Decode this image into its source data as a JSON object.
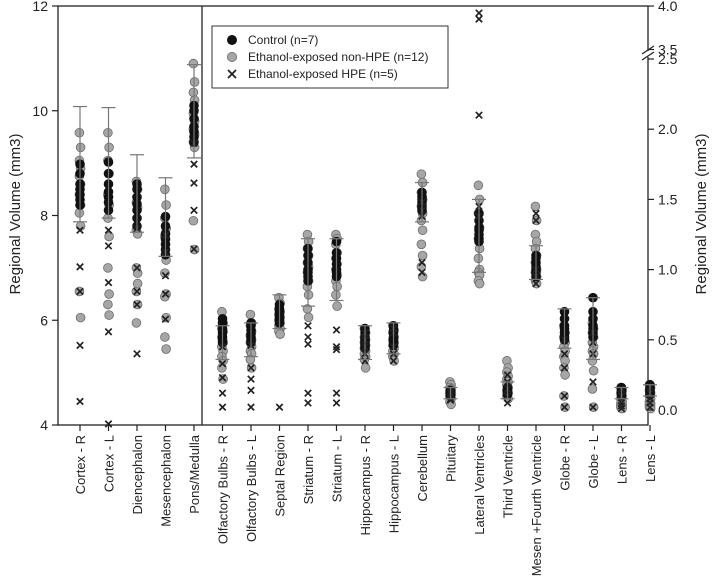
{
  "chart_data": {
    "type": "scatter",
    "title": "",
    "ylabel_left": "Regional Volume (mm3)",
    "ylabel_right": "Regional Volume (mm3)",
    "left_axis": {
      "ylim": [
        4,
        12
      ],
      "ticks": [
        "4",
        "6",
        "8",
        "10",
        "12"
      ]
    },
    "right_axis": {
      "ylim": [
        0,
        4.0
      ],
      "ticks_lower": [
        "0.0",
        "0.5",
        "1.0",
        "1.5",
        "2.0",
        "2.5"
      ],
      "ticks_upper": [
        "3.5",
        "4.0"
      ],
      "axis_break": "between 2.5 and 3.5"
    },
    "legend": {
      "placement": "top-center",
      "entries": [
        {
          "label": "Control (n=7)",
          "marker": "filled-black-circle"
        },
        {
          "label": "Ethanol-exposed non-HPE (n=12)",
          "marker": "filled-gray-circle"
        },
        {
          "label": "Ethanol-exposed HPE (n=5)",
          "marker": "x"
        }
      ]
    },
    "colors": {
      "control": "#111111",
      "non_hpe": "#a6a6a6",
      "hpe": "#222222",
      "errorbar": "#777777"
    },
    "categories": [
      {
        "label": "Cortex - R",
        "axis": "left",
        "control": [
          8.98,
          8.8,
          8.6,
          8.5,
          8.4,
          8.3,
          8.2
        ],
        "non_hpe": [
          9.58,
          9.3,
          9.05,
          8.9,
          8.75,
          8.6,
          8.4,
          8.2,
          8.05,
          7.8,
          6.55,
          6.05
        ],
        "hpe": [
          7.72,
          7.02,
          6.55,
          5.52,
          4.45
        ],
        "mean": 8.98,
        "err_upper": 10.08,
        "err_lower": 7.88
      },
      {
        "label": "Cortex - L",
        "axis": "left",
        "control": [
          9.02,
          8.8,
          8.6,
          8.45,
          8.35,
          8.25,
          8.1
        ],
        "non_hpe": [
          9.58,
          9.3,
          9.05,
          8.8,
          8.4,
          8.2,
          7.95,
          7.6,
          7.0,
          6.5,
          6.3,
          6.1
        ],
        "hpe": [
          7.72,
          7.42,
          6.72,
          5.78,
          4.02
        ],
        "mean": 9.02,
        "err_upper": 10.06,
        "err_lower": 7.95
      },
      {
        "label": "Diencephalon",
        "axis": "left",
        "control": [
          8.6,
          8.5,
          8.35,
          8.22,
          8.1,
          7.95,
          7.8
        ],
        "non_hpe": [
          8.65,
          8.5,
          8.25,
          8.15,
          7.72,
          7.65,
          7.0,
          6.9,
          6.55,
          6.3,
          5.95,
          6.7
        ],
        "hpe": [
          7.75,
          7.0,
          6.55,
          6.3,
          5.36
        ],
        "mean": 8.42,
        "err_upper": 9.16,
        "err_lower": 7.68
      },
      {
        "label": "Mesencephalon",
        "axis": "left",
        "control": [
          7.98,
          7.8,
          7.65,
          7.55,
          7.45,
          7.35,
          7.25
        ],
        "non_hpe": [
          8.5,
          8.2,
          7.95,
          7.75,
          7.6,
          7.15,
          6.9,
          6.5,
          6.45,
          6.05,
          5.68,
          5.45
        ],
        "hpe": [
          7.62,
          7.3,
          6.85,
          6.5,
          6.02
        ],
        "mean": 7.98,
        "err_upper": 8.72,
        "err_lower": 7.22
      },
      {
        "label": "Pons/Medulla",
        "axis": "left",
        "control": [
          10.1,
          10.0,
          9.85,
          9.7,
          9.6,
          9.5,
          9.4
        ],
        "non_hpe": [
          10.9,
          10.55,
          10.35,
          10.2,
          9.95,
          9.8,
          9.65,
          9.55,
          9.4,
          9.3,
          7.9,
          7.35
        ],
        "hpe": [
          9.38,
          8.98,
          8.62,
          8.1,
          7.36
        ],
        "mean": 9.98,
        "err_upper": 10.88,
        "err_lower": 9.1
      },
      {
        "label": "Olfactory Bulbs - R",
        "axis": "right",
        "control": [
          0.65,
          0.62,
          0.58,
          0.55,
          0.52,
          0.5,
          0.48
        ],
        "non_hpe": [
          0.7,
          0.62,
          0.58,
          0.56,
          0.52,
          0.48,
          0.45,
          0.42,
          0.38,
          0.35,
          0.3,
          0.22
        ],
        "hpe": [
          0.45,
          0.33,
          0.23,
          0.12,
          0.02
        ],
        "mean": 0.48,
        "err_upper": 0.6,
        "err_lower": 0.36
      },
      {
        "label": "Olfactory Bulbs - L",
        "axis": "right",
        "control": [
          0.62,
          0.6,
          0.57,
          0.54,
          0.52,
          0.5,
          0.48
        ],
        "non_hpe": [
          0.68,
          0.62,
          0.6,
          0.56,
          0.53,
          0.5,
          0.48,
          0.45,
          0.42,
          0.4,
          0.36,
          0.3
        ],
        "hpe": [
          0.46,
          0.3,
          0.22,
          0.14,
          0.02
        ],
        "mean": 0.5,
        "err_upper": 0.62,
        "err_lower": 0.38
      },
      {
        "label": "Septal Region",
        "axis": "right",
        "control": [
          0.75,
          0.72,
          0.7,
          0.68,
          0.66,
          0.64,
          0.62
        ],
        "non_hpe": [
          0.8,
          0.76,
          0.72,
          0.7,
          0.68,
          0.66,
          0.64,
          0.62,
          0.6,
          0.58,
          0.56,
          0.54
        ],
        "hpe": [
          0.02
        ],
        "mean": 0.7,
        "err_upper": 0.82,
        "err_lower": 0.58
      },
      {
        "label": "Striatum - R",
        "axis": "right",
        "control": [
          1.15,
          1.1,
          1.05,
          1.0,
          0.98,
          0.95,
          0.92
        ],
        "non_hpe": [
          1.25,
          1.2,
          1.15,
          1.1,
          1.05,
          1.02,
          0.98,
          0.92,
          0.88,
          0.82,
          0.72,
          0.66
        ],
        "hpe": [
          0.6,
          0.52,
          0.47,
          0.12,
          0.05
        ],
        "mean": 0.98,
        "err_upper": 1.22,
        "err_lower": 0.74
      },
      {
        "label": "Striatum - L",
        "axis": "right",
        "control": [
          1.2,
          1.12,
          1.08,
          1.04,
          1.0,
          0.98,
          0.95
        ],
        "non_hpe": [
          1.25,
          1.22,
          1.18,
          1.12,
          1.08,
          1.04,
          1.0,
          0.96,
          0.92,
          0.88,
          0.82,
          0.74
        ],
        "hpe": [
          0.57,
          0.45,
          0.43,
          0.12,
          0.05
        ],
        "mean": 1.0,
        "err_upper": 1.22,
        "err_lower": 0.78
      },
      {
        "label": "Hippocampus - R",
        "axis": "right",
        "control": [
          0.58,
          0.55,
          0.52,
          0.5,
          0.48,
          0.46,
          0.44
        ],
        "non_hpe": [
          0.58,
          0.55,
          0.52,
          0.5,
          0.48,
          0.46,
          0.44,
          0.42,
          0.4,
          0.38,
          0.36,
          0.3
        ],
        "hpe": [
          0.55,
          0.5,
          0.45,
          0.4,
          0.35
        ],
        "mean": 0.48,
        "err_upper": 0.6,
        "err_lower": 0.36
      },
      {
        "label": "Hippocampus - L",
        "axis": "right",
        "control": [
          0.6,
          0.57,
          0.55,
          0.52,
          0.5,
          0.48,
          0.46
        ],
        "non_hpe": [
          0.6,
          0.57,
          0.55,
          0.52,
          0.5,
          0.48,
          0.46,
          0.44,
          0.42,
          0.4,
          0.38,
          0.35
        ],
        "hpe": [
          0.58,
          0.55,
          0.45,
          0.4,
          0.35
        ],
        "mean": 0.52,
        "err_upper": 0.62,
        "err_lower": 0.4
      },
      {
        "label": "Cerebellum",
        "axis": "right",
        "control": [
          1.55,
          1.52,
          1.5,
          1.48,
          1.46,
          1.44,
          1.42
        ],
        "non_hpe": [
          1.68,
          1.62,
          1.55,
          1.5,
          1.45,
          1.4,
          1.35,
          1.28,
          1.18,
          1.1,
          1.02,
          0.95
        ],
        "hpe": [
          1.48,
          1.42,
          1.38,
          1.05,
          0.98
        ],
        "mean": 1.48,
        "err_upper": 1.62,
        "err_lower": 1.34
      },
      {
        "label": "Pituitary",
        "axis": "right",
        "control": [
          0.14,
          0.13,
          0.12,
          0.12,
          0.11,
          0.1,
          0.1
        ],
        "non_hpe": [
          0.2,
          0.18,
          0.16,
          0.15,
          0.14,
          0.13,
          0.12,
          0.11,
          0.1,
          0.08,
          0.06,
          0.04
        ],
        "hpe": [
          0.14,
          0.12,
          0.1,
          0.08,
          0.07
        ],
        "mean": 0.12,
        "err_upper": 0.16,
        "err_lower": 0.08
      },
      {
        "label": "Lateral Ventricles",
        "axis": "right",
        "control": [
          1.4,
          1.35,
          1.3,
          1.28,
          1.25,
          1.22,
          1.2
        ],
        "non_hpe": [
          1.6,
          1.5,
          1.4,
          1.3,
          1.22,
          1.15,
          1.08,
          1.0,
          0.98,
          0.96,
          0.92,
          0.9
        ],
        "hpe": [
          3.92,
          3.85,
          2.1,
          1.45,
          1.38
        ],
        "mean": 1.3,
        "err_upper": 1.5,
        "err_lower": 0.98
      },
      {
        "label": "Third Ventricle",
        "axis": "right",
        "control": [
          0.16,
          0.15,
          0.14,
          0.13,
          0.12,
          0.12,
          0.11
        ],
        "non_hpe": [
          0.35,
          0.3,
          0.27,
          0.24,
          0.22,
          0.2,
          0.18,
          0.16,
          0.14,
          0.12,
          0.1,
          0.08
        ],
        "hpe": [
          0.25,
          0.2,
          0.15,
          0.1,
          0.05
        ],
        "mean": 0.14,
        "err_upper": 0.2,
        "err_lower": 0.08
      },
      {
        "label": "Mesen +Fourth Ventricle",
        "axis": "right",
        "control": [
          1.1,
          1.08,
          1.05,
          1.02,
          1.0,
          0.98,
          0.95
        ],
        "non_hpe": [
          1.45,
          1.35,
          1.25,
          1.2,
          1.15,
          1.1,
          1.05,
          1.0,
          0.98,
          0.95,
          0.92,
          0.9
        ],
        "hpe": [
          1.4,
          1.35,
          1.0,
          0.95,
          0.9
        ],
        "mean": 1.05,
        "err_upper": 1.17,
        "err_lower": 0.93
      },
      {
        "label": "Globe - R",
        "axis": "right",
        "control": [
          0.7,
          0.65,
          0.6,
          0.58,
          0.55,
          0.52,
          0.5
        ],
        "non_hpe": [
          0.6,
          0.55,
          0.52,
          0.48,
          0.45,
          0.42,
          0.38,
          0.35,
          0.3,
          0.25,
          0.1,
          0.02
        ],
        "hpe": [
          0.5,
          0.4,
          0.3,
          0.1,
          0.02
        ],
        "mean": 0.58,
        "err_upper": 0.72,
        "err_lower": 0.44
      },
      {
        "label": "Globe - L",
        "axis": "right",
        "control": [
          0.8,
          0.7,
          0.65,
          0.6,
          0.58,
          0.55,
          0.52
        ],
        "non_hpe": [
          0.62,
          0.58,
          0.55,
          0.52,
          0.48,
          0.45,
          0.42,
          0.4,
          0.35,
          0.28,
          0.15,
          0.02
        ],
        "hpe": [
          0.55,
          0.48,
          0.4,
          0.2,
          0.02
        ],
        "mean": 0.58,
        "err_upper": 0.8,
        "err_lower": 0.36
      },
      {
        "label": "Lens - R",
        "axis": "right",
        "control": [
          0.16,
          0.15,
          0.14,
          0.13,
          0.12,
          0.11,
          0.1
        ],
        "non_hpe": [
          0.16,
          0.14,
          0.12,
          0.1,
          0.08,
          0.06,
          0.05,
          0.04,
          0.03,
          0.02,
          0.02,
          0.01
        ],
        "hpe": [
          0.15,
          0.1,
          0.05,
          0.03,
          0.01
        ],
        "mean": 0.12,
        "err_upper": 0.16,
        "err_lower": 0.08
      },
      {
        "label": "Lens - L",
        "axis": "right",
        "control": [
          0.18,
          0.16,
          0.15,
          0.14,
          0.13,
          0.12,
          0.11
        ],
        "non_hpe": [
          0.18,
          0.16,
          0.14,
          0.12,
          0.1,
          0.08,
          0.06,
          0.05,
          0.04,
          0.03,
          0.02,
          0.01
        ],
        "hpe": [
          0.16,
          0.12,
          0.08,
          0.05,
          0.02
        ],
        "mean": 0.14,
        "err_upper": 0.18,
        "err_lower": 0.1
      }
    ]
  }
}
